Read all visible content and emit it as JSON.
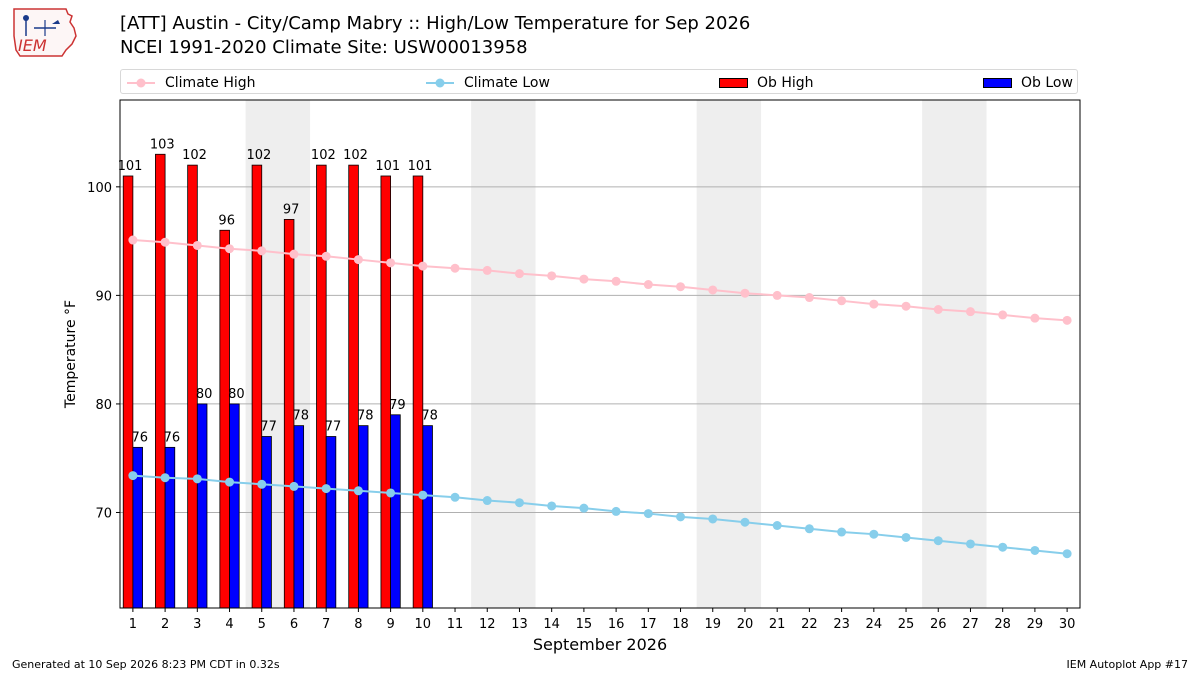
{
  "header": {
    "title": "[ATT] Austin - City/Camp Mabry :: High/Low Temperature for Sep 2026",
    "subtitle": "NCEI 1991-2020 Climate Site: USW00013958"
  },
  "logo": {
    "text": "IEM"
  },
  "footer": {
    "generated": "Generated at 10 Sep 2026 8:23 PM CDT in 0.32s",
    "app": "IEM Autoplot App #17"
  },
  "colors": {
    "climate_high": "#ffc0cb",
    "climate_low": "#87ceeb",
    "ob_high": "#ff0000",
    "ob_low": "#0000ff",
    "weekend_band": "#eeeeee",
    "grid": "#b0b0b0"
  },
  "chart_data": {
    "type": "bar",
    "title": "[ATT] Austin - City/Camp Mabry :: High/Low Temperature for Sep 2026",
    "xlabel": "September 2026",
    "ylabel": "Temperature °F",
    "ylim": [
      61.2,
      108
    ],
    "yticks": [
      70,
      80,
      90,
      100
    ],
    "x": [
      1,
      2,
      3,
      4,
      5,
      6,
      7,
      8,
      9,
      10,
      11,
      12,
      13,
      14,
      15,
      16,
      17,
      18,
      19,
      20,
      21,
      22,
      23,
      24,
      25,
      26,
      27,
      28,
      29,
      30
    ],
    "weekend_shading": [
      [
        5,
        6
      ],
      [
        12,
        13
      ],
      [
        19,
        20
      ],
      [
        26,
        27
      ]
    ],
    "grid": "horizontal",
    "legend": "top",
    "legend_entries": [
      "Climate High",
      "Climate Low",
      "Ob High",
      "Ob Low"
    ],
    "series": [
      {
        "name": "Ob High",
        "kind": "bar",
        "x": [
          1,
          2,
          3,
          4,
          5,
          6,
          7,
          8,
          9,
          10
        ],
        "values": [
          101,
          103,
          102,
          96,
          102,
          97,
          102,
          102,
          101,
          101
        ]
      },
      {
        "name": "Ob Low",
        "kind": "bar",
        "x": [
          1,
          2,
          3,
          4,
          5,
          6,
          7,
          8,
          9,
          10
        ],
        "values": [
          76,
          76,
          80,
          80,
          77,
          78,
          77,
          78,
          79,
          78
        ]
      },
      {
        "name": "Climate High",
        "kind": "line",
        "x": [
          1,
          2,
          3,
          4,
          5,
          6,
          7,
          8,
          9,
          10,
          11,
          12,
          13,
          14,
          15,
          16,
          17,
          18,
          19,
          20,
          21,
          22,
          23,
          24,
          25,
          26,
          27,
          28,
          29,
          30
        ],
        "values": [
          95.1,
          94.9,
          94.6,
          94.3,
          94.1,
          93.8,
          93.6,
          93.3,
          93.0,
          92.7,
          92.5,
          92.3,
          92.0,
          91.8,
          91.5,
          91.3,
          91.0,
          90.8,
          90.5,
          90.2,
          90.0,
          89.8,
          89.5,
          89.2,
          89.0,
          88.7,
          88.5,
          88.2,
          87.9,
          87.7
        ]
      },
      {
        "name": "Climate Low",
        "kind": "line",
        "x": [
          1,
          2,
          3,
          4,
          5,
          6,
          7,
          8,
          9,
          10,
          11,
          12,
          13,
          14,
          15,
          16,
          17,
          18,
          19,
          20,
          21,
          22,
          23,
          24,
          25,
          26,
          27,
          28,
          29,
          30
        ],
        "values": [
          73.4,
          73.2,
          73.1,
          72.8,
          72.6,
          72.4,
          72.2,
          72.0,
          71.8,
          71.6,
          71.4,
          71.1,
          70.9,
          70.6,
          70.4,
          70.1,
          69.9,
          69.6,
          69.4,
          69.1,
          68.8,
          68.5,
          68.2,
          68.0,
          67.7,
          67.4,
          67.1,
          66.8,
          66.5,
          66.2
        ]
      }
    ]
  }
}
